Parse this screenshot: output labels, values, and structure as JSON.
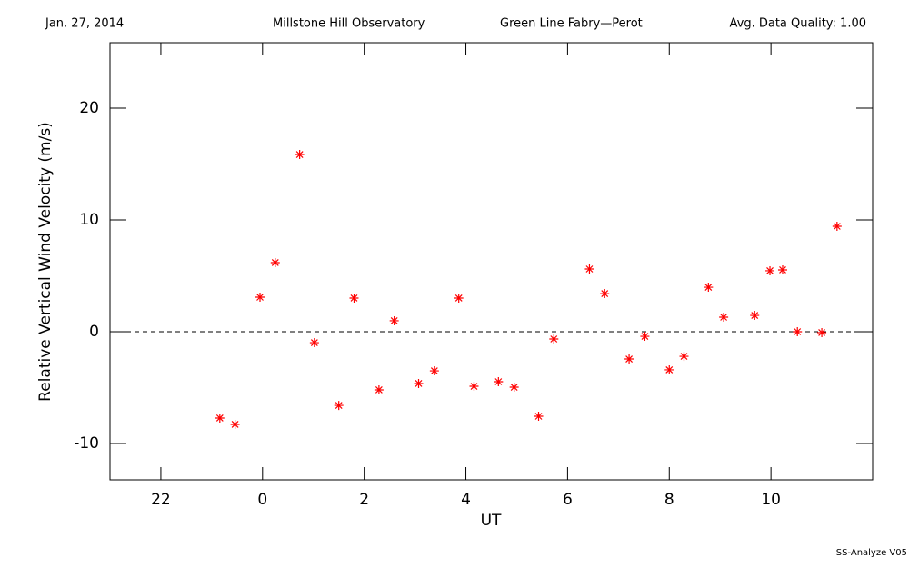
{
  "chart_data": {
    "type": "scatter",
    "header": [
      "Jan. 27, 2014",
      "Millstone Hill Observatory",
      "Green Line Fabry—Perot",
      "Avg. Data Quality: 1.00"
    ],
    "footer": "SS-Analyze V05",
    "xlabel": "UT",
    "ylabel": "Relative Vertical Wind Velocity (m/s)",
    "xlim": [
      21,
      36
    ],
    "ylim": [
      -13.25,
      25.85
    ],
    "xticks": [
      22,
      {
        "value": 24,
        "label": "0"
      },
      {
        "value": 26,
        "label": "2"
      },
      {
        "value": 28,
        "label": "4"
      },
      {
        "value": 30,
        "label": "6"
      },
      {
        "value": 32,
        "label": "8"
      },
      {
        "value": 34,
        "label": "10"
      }
    ],
    "yticks": [
      -10,
      0,
      10,
      20
    ],
    "reference_line": 0,
    "color": "#ff0000",
    "x": [
      23.16,
      23.46,
      23.95,
      24.25,
      24.73,
      25.02,
      25.5,
      25.8,
      26.29,
      26.59,
      27.07,
      27.38,
      27.86,
      28.16,
      28.64,
      28.95,
      29.43,
      29.73,
      30.43,
      30.73,
      31.21,
      31.52,
      32.0,
      32.29,
      32.77,
      33.07,
      33.68,
      33.98,
      34.23,
      34.52,
      35.0,
      35.3
    ],
    "values": [
      -7.72,
      -8.29,
      3.09,
      6.18,
      15.85,
      -0.98,
      -6.59,
      3.01,
      -5.2,
      0.98,
      -4.63,
      -3.5,
      3.01,
      -4.88,
      -4.47,
      -4.96,
      -7.56,
      -0.65,
      5.61,
      3.41,
      -2.44,
      -0.41,
      -3.41,
      -2.2,
      3.98,
      1.3,
      1.46,
      5.45,
      5.53,
      0,
      -0.08,
      9.43
    ]
  }
}
